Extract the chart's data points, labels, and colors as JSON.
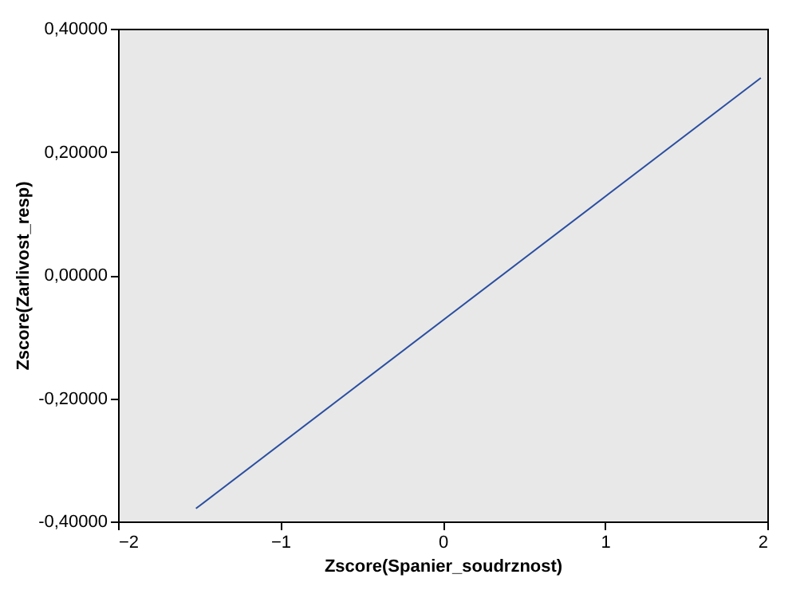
{
  "chart_data": {
    "type": "line",
    "xlabel": "Zscore(Spanier_soudrznost)",
    "ylabel": "Zscore(Zarlivost_resp)",
    "x": [
      -1.52,
      1.96
    ],
    "series": [
      {
        "color": "#2a4ea0",
        "values": [
          -0.379,
          0.32
        ]
      }
    ],
    "xlim": [
      -2,
      2
    ],
    "xticks": [
      -2,
      -1,
      0,
      1,
      2
    ],
    "ylim": [
      -0.4,
      0.4
    ],
    "yticks": [
      {
        "value": -0.4,
        "label": "-0,40000"
      },
      {
        "value": -0.2,
        "label": "-0,20000"
      },
      {
        "value": 0,
        "label": "0,00000"
      },
      {
        "value": 0.2,
        "label": "0,20000"
      },
      {
        "value": 0.4,
        "label": "0,40000"
      }
    ],
    "grid": false,
    "marker": "none",
    "line_style": "solid"
  }
}
